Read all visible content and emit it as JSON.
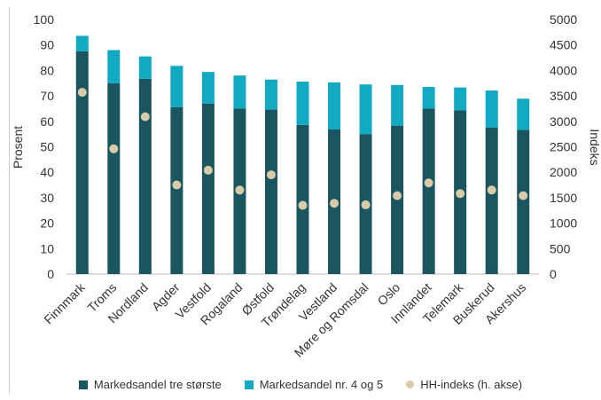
{
  "chart_data": {
    "type": "bar",
    "stacked": true,
    "categories": [
      "Finnmark",
      "Troms",
      "Nordland",
      "Agder",
      "Vestfold",
      "Rogaland",
      "Østfold",
      "Trøndelag",
      "Vestland",
      "Møre og Romsdal",
      "Oslo",
      "Innlandet",
      "Telemark",
      "Buskerud",
      "Akershus"
    ],
    "series": [
      {
        "name": "Markedsandel tre største",
        "axis": "left",
        "color": "#1a5560",
        "values": [
          87.5,
          75,
          76.7,
          65.6,
          67,
          65,
          64.6,
          58.6,
          56.8,
          55,
          58.3,
          65,
          64.3,
          57.6,
          56.6
        ]
      },
      {
        "name": "Markedsandel nr. 4 og 5",
        "axis": "left",
        "color": "#12a9c2",
        "values": [
          6.1,
          13,
          8.8,
          16.2,
          12.4,
          13,
          11.8,
          17,
          18.5,
          19.5,
          16,
          8.5,
          9,
          14.5,
          12.3
        ]
      },
      {
        "name": "HH-indeks (h. akse)",
        "axis": "right",
        "type": "scatter",
        "color": "#d8cba9",
        "values": [
          3570,
          2460,
          3090,
          1750,
          2040,
          1650,
          1950,
          1350,
          1390,
          1360,
          1540,
          1790,
          1580,
          1650,
          1540
        ]
      }
    ],
    "ylabel": "Prosent",
    "y2label": "Indeks",
    "ylim": [
      0,
      100
    ],
    "y2lim": [
      0,
      5000
    ],
    "yticks": [
      "0",
      "10",
      "20",
      "30",
      "40",
      "50",
      "60",
      "70",
      "80",
      "90",
      "100"
    ],
    "y2ticks": [
      "0",
      "500",
      "1000",
      "1500",
      "2000",
      "2500",
      "3000",
      "3500",
      "4000",
      "4500",
      "5000"
    ],
    "grid": false,
    "legend_position": "bottom"
  }
}
